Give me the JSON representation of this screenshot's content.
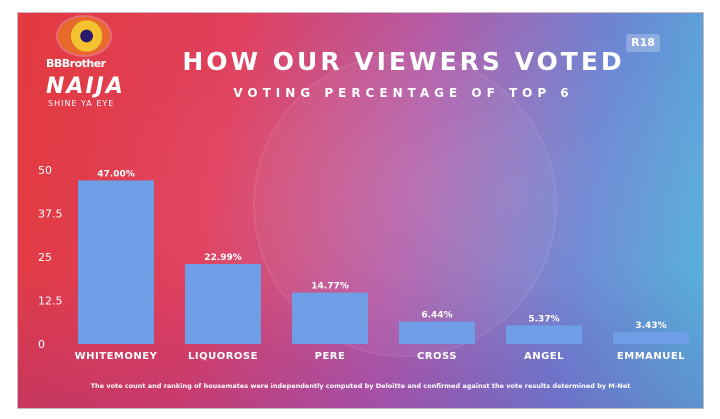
{
  "logo": {
    "line1": "BBBrother",
    "line2": "NAIJA",
    "line3": "SHINE YA EYE"
  },
  "header": {
    "title": "HOW OUR VIEWERS VOTED",
    "subtitle": "VOTING PERCENTAGE OF TOP 6",
    "rating": "R18"
  },
  "chart_data": {
    "type": "bar",
    "title": "HOW OUR VIEWERS VOTED",
    "subtitle": "VOTING PERCENTAGE OF TOP 6",
    "categories": [
      "WHITEMONEY",
      "LIQUOROSE",
      "PERE",
      "CROSS",
      "ANGEL",
      "EMMANUEL"
    ],
    "values": [
      47.0,
      22.99,
      14.77,
      6.44,
      5.37,
      3.43
    ],
    "value_labels": [
      "47.00%",
      "22.99%",
      "14.77%",
      "6.44%",
      "5.37%",
      "3.43%"
    ],
    "yticks": [
      "0",
      "12.5",
      "25",
      "37.5",
      "50"
    ],
    "ylim": [
      0,
      50
    ],
    "grid": false,
    "bar_color": "#6f9de6"
  },
  "footnote": "The vote count and ranking of housemates were independently computed by Deloitte and confirmed against the vote results determined by M-Net",
  "colors": {
    "bar": "#6f9de6",
    "text": "#ffffff"
  }
}
